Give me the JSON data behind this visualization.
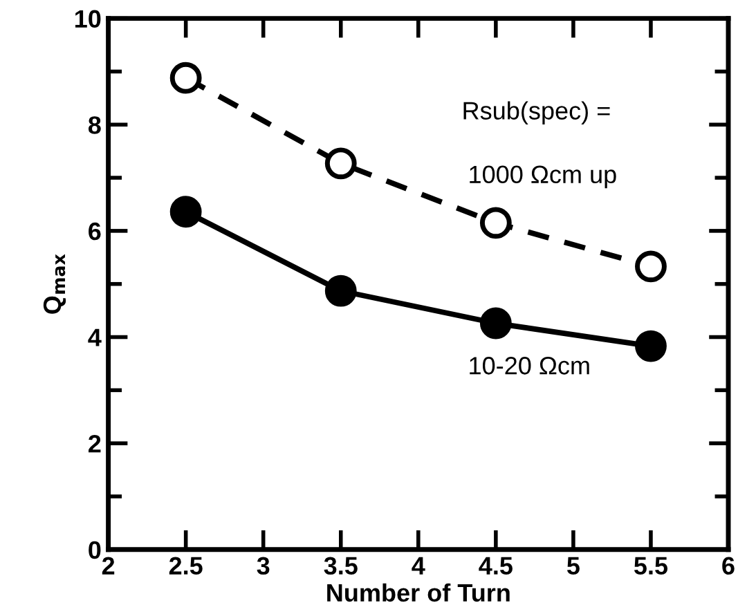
{
  "chart_data": {
    "type": "line",
    "xlabel": "Number of Turn",
    "ylabel": "Q$_{max}$",
    "x": [
      2.5,
      3.5,
      4.5,
      5.5
    ],
    "series": [
      {
        "name": "1000 Ωcm up",
        "color": "#000000",
        "values": [
          8.88,
          7.27,
          6.15,
          5.33
        ],
        "marker": "circle",
        "line_style": "dashed"
      },
      {
        "name": "10-20 Ωcm",
        "color": "#000000",
        "values": [
          6.36,
          4.87,
          4.26,
          3.83
        ],
        "marker": "circle",
        "line_style": "solid"
      }
    ],
    "annotations": [
      "Rsub(spec) ="
    ],
    "xlim": [
      2,
      6
    ],
    "xticks": [
      2,
      2.5,
      3,
      3.5,
      4,
      4.5,
      5,
      5.5,
      6
    ],
    "ylim": [
      0,
      10
    ],
    "yticks": [
      0,
      2,
      4,
      6,
      8,
      10
    ],
    "grid": false,
    "legend": false
  }
}
